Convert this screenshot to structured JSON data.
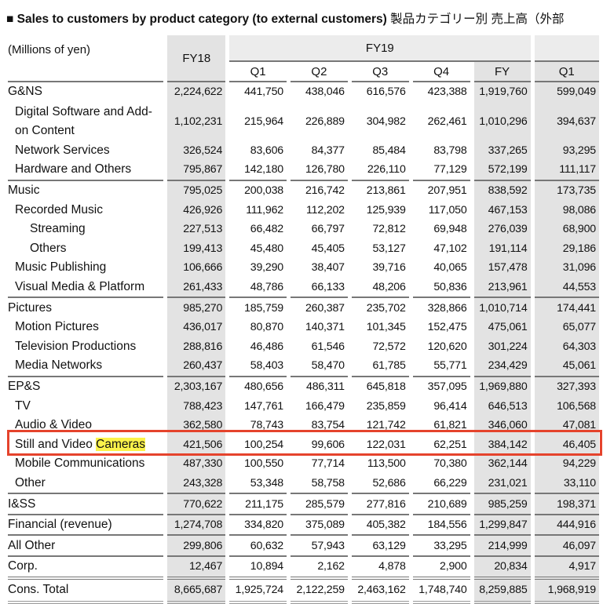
{
  "title": {
    "en": "Sales to customers by product category (to external customers)",
    "jp": "製品カテゴリー別 売上高（外部"
  },
  "units": "(Millions of yen)",
  "headers": {
    "fy18": "FY18",
    "fy19": "FY19",
    "quarters": [
      "Q1",
      "Q2",
      "Q3",
      "Q4"
    ],
    "fy": "FY",
    "next_q1": "Q1"
  },
  "highlight": {
    "row": "Still and Video Cameras",
    "word": "Cameras",
    "box_color": "#e5432c",
    "marker_color": "#fbf34a"
  },
  "rows": [
    {
      "label": "G&NS",
      "indent": 0,
      "values": [
        "2,224,622",
        "441,750",
        "438,046",
        "616,576",
        "423,388",
        "1,919,760",
        "599,049"
      ]
    },
    {
      "label": "Digital Software and Add-on Content",
      "indent": 1,
      "values": [
        "1,102,231",
        "215,964",
        "226,889",
        "304,982",
        "262,461",
        "1,010,296",
        "394,637"
      ]
    },
    {
      "label": "Network Services",
      "indent": 1,
      "values": [
        "326,524",
        "83,606",
        "84,377",
        "85,484",
        "83,798",
        "337,265",
        "93,295"
      ]
    },
    {
      "label": "Hardware and Others",
      "indent": 1,
      "values": [
        "795,867",
        "142,180",
        "126,780",
        "226,110",
        "77,129",
        "572,199",
        "111,117"
      ]
    },
    {
      "label": "Music",
      "indent": 0,
      "values": [
        "795,025",
        "200,038",
        "216,742",
        "213,861",
        "207,951",
        "838,592",
        "173,735"
      ]
    },
    {
      "label": "Recorded Music",
      "indent": 1,
      "values": [
        "426,926",
        "111,962",
        "112,202",
        "125,939",
        "117,050",
        "467,153",
        "98,086"
      ]
    },
    {
      "label": "Streaming",
      "indent": 2,
      "values": [
        "227,513",
        "66,482",
        "66,797",
        "72,812",
        "69,948",
        "276,039",
        "68,900"
      ]
    },
    {
      "label": "Others",
      "indent": 2,
      "values": [
        "199,413",
        "45,480",
        "45,405",
        "53,127",
        "47,102",
        "191,114",
        "29,186"
      ]
    },
    {
      "label": "Music Publishing",
      "indent": 1,
      "values": [
        "106,666",
        "39,290",
        "38,407",
        "39,716",
        "40,065",
        "157,478",
        "31,096"
      ]
    },
    {
      "label": "Visual Media & Platform",
      "indent": 1,
      "values": [
        "261,433",
        "48,786",
        "66,133",
        "48,206",
        "50,836",
        "213,961",
        "44,553"
      ]
    },
    {
      "label": "Pictures",
      "indent": 0,
      "values": [
        "985,270",
        "185,759",
        "260,387",
        "235,702",
        "328,866",
        "1,010,714",
        "174,441"
      ]
    },
    {
      "label": "Motion Pictures",
      "indent": 1,
      "values": [
        "436,017",
        "80,870",
        "140,371",
        "101,345",
        "152,475",
        "475,061",
        "65,077"
      ]
    },
    {
      "label": "Television Productions",
      "indent": 1,
      "values": [
        "288,816",
        "46,486",
        "61,546",
        "72,572",
        "120,620",
        "301,224",
        "64,303"
      ]
    },
    {
      "label": "Media Networks",
      "indent": 1,
      "values": [
        "260,437",
        "58,403",
        "58,470",
        "61,785",
        "55,771",
        "234,429",
        "45,061"
      ]
    },
    {
      "label": "EP&S",
      "indent": 0,
      "values": [
        "2,303,167",
        "480,656",
        "486,311",
        "645,818",
        "357,095",
        "1,969,880",
        "327,393"
      ]
    },
    {
      "label": "TV",
      "indent": 1,
      "values": [
        "788,423",
        "147,761",
        "166,479",
        "235,859",
        "96,414",
        "646,513",
        "106,568"
      ]
    },
    {
      "label": "Audio & Video",
      "indent": 1,
      "values": [
        "362,580",
        "78,743",
        "83,754",
        "121,742",
        "61,821",
        "346,060",
        "47,081"
      ]
    },
    {
      "label": "Still and Video ",
      "label_hl": "Cameras",
      "indent": 1,
      "values": [
        "421,506",
        "100,254",
        "99,606",
        "122,031",
        "62,251",
        "384,142",
        "46,405"
      ]
    },
    {
      "label": "Mobile Communications",
      "indent": 1,
      "values": [
        "487,330",
        "100,550",
        "77,714",
        "113,500",
        "70,380",
        "362,144",
        "94,229"
      ]
    },
    {
      "label": "Other",
      "indent": 1,
      "values": [
        "243,328",
        "53,348",
        "58,758",
        "52,686",
        "66,229",
        "231,021",
        "33,110"
      ]
    },
    {
      "label": "I&SS",
      "indent": 0,
      "values": [
        "770,622",
        "211,175",
        "285,579",
        "277,816",
        "210,689",
        "985,259",
        "198,371"
      ]
    },
    {
      "label": "Financial (revenue)",
      "indent": 0,
      "values": [
        "1,274,708",
        "334,820",
        "375,089",
        "405,382",
        "184,556",
        "1,299,847",
        "444,916"
      ]
    },
    {
      "label": "All Other",
      "indent": 0,
      "values": [
        "299,806",
        "60,632",
        "57,943",
        "63,129",
        "33,295",
        "214,999",
        "46,097"
      ]
    },
    {
      "label": "Corp.",
      "indent": 0,
      "values": [
        "12,467",
        "10,894",
        "2,162",
        "4,878",
        "2,900",
        "20,834",
        "4,917"
      ]
    },
    {
      "label": "Cons. Total",
      "indent": 0,
      "values": [
        "8,665,687",
        "1,925,724",
        "2,122,259",
        "2,463,162",
        "1,748,740",
        "8,259,885",
        "1,968,919"
      ]
    }
  ]
}
